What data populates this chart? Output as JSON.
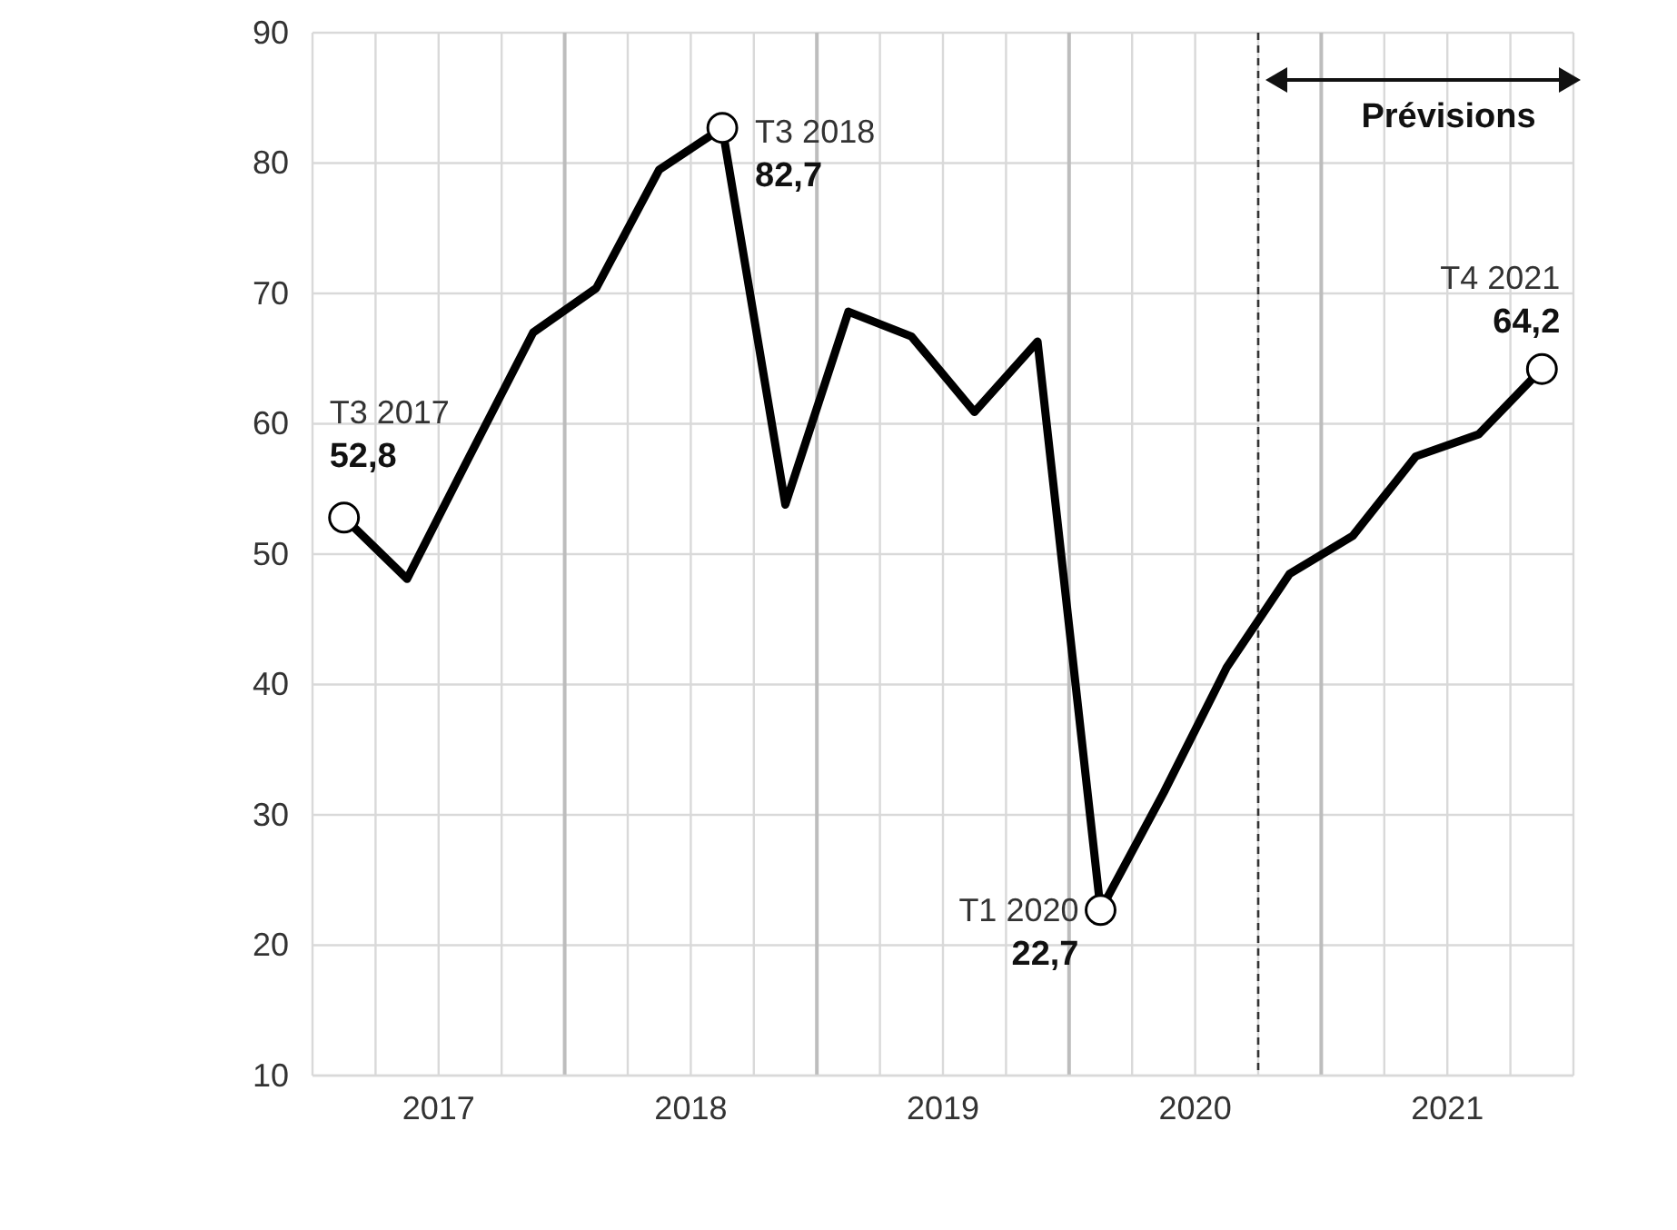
{
  "chart_data": {
    "type": "line",
    "x": [
      2017.125,
      2017.375,
      2017.625,
      2017.875,
      2018.125,
      2018.375,
      2018.625,
      2018.875,
      2019.125,
      2019.375,
      2019.625,
      2019.875,
      2020.125,
      2020.375,
      2020.625,
      2020.875,
      2021.125,
      2021.375,
      2021.625,
      2021.875
    ],
    "series": [
      {
        "color": "#000000",
        "values": [
          52.8,
          48.1,
          57.6,
          67.0,
          70.4,
          79.5,
          82.7,
          53.8,
          68.6,
          66.7,
          60.9,
          66.3,
          22.7,
          31.7,
          41.3,
          48.5,
          51.4,
          57.5,
          59.2,
          64.2
        ]
      },
      {
        "type": "scatter",
        "color": "#000000",
        "marker": "circle",
        "x": [
          2017.125,
          2018.625,
          2020.125,
          2021.875
        ],
        "values": [
          52.8,
          82.7,
          22.7,
          64.2
        ],
        "value_labels": [
          "52,8",
          "82,7",
          "22,7",
          "64,2"
        ]
      }
    ],
    "annotations": [
      {
        "text": "T3 2017",
        "x": 2017.125,
        "y": 52.8
      },
      {
        "text": "T3 2018",
        "x": 2018.625,
        "y": 82.7
      },
      {
        "text": "T1 2020",
        "x": 2020.125,
        "y": 22.7
      },
      {
        "text": "T4 2021",
        "x": 2021.875,
        "y": 64.2
      },
      "Prévisions"
    ],
    "ref_lines": [
      {
        "axis": "x",
        "value": 2020.75,
        "label": null,
        "line_style": "dashed",
        "color": "#333333"
      }
    ],
    "xlim": [
      2017,
      2022
    ],
    "xticks": [
      {
        "value": 2017.25,
        "label": null
      },
      {
        "value": 2017.5,
        "label": "2017"
      },
      {
        "value": 2017.75,
        "label": null
      },
      {
        "value": 2018,
        "label": null
      },
      {
        "value": 2018.25,
        "label": null
      },
      {
        "value": 2018.5,
        "label": "2018"
      },
      {
        "value": 2018.75,
        "label": null
      },
      {
        "value": 2019,
        "label": null
      },
      {
        "value": 2019.25,
        "label": null
      },
      {
        "value": 2019.5,
        "label": "2019"
      },
      {
        "value": 2019.75,
        "label": null
      },
      {
        "value": 2020,
        "label": null
      },
      {
        "value": 2020.25,
        "label": null
      },
      {
        "value": 2020.5,
        "label": "2020"
      },
      {
        "value": 2020.75,
        "label": null
      },
      {
        "value": 2021,
        "label": null
      },
      {
        "value": 2021.25,
        "label": null
      },
      {
        "value": 2021.5,
        "label": "2021"
      },
      {
        "value": 2021.75,
        "label": null
      }
    ],
    "ylim": [
      10,
      90
    ],
    "yticks": [
      10,
      20,
      30,
      40,
      50,
      60,
      70,
      80,
      90
    ],
    "grid": true,
    "line_style": "solid"
  }
}
